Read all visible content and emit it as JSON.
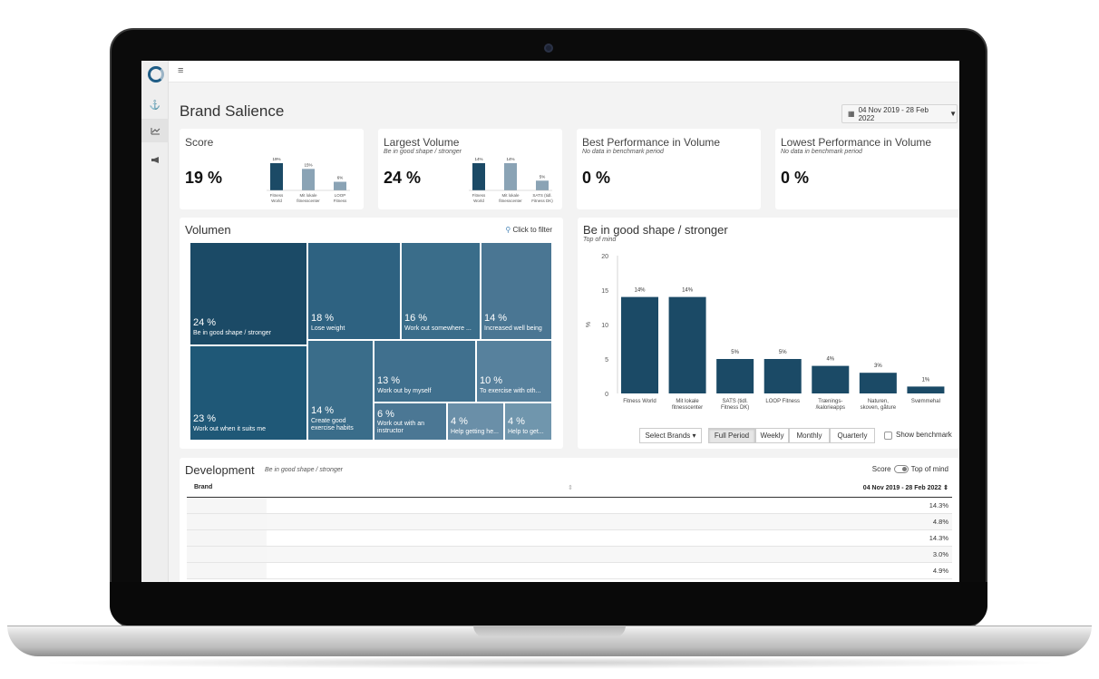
{
  "header": {
    "page_title": "Brand Salience",
    "date_range": "04 Nov 2019 - 28 Feb 2022"
  },
  "sidebar": {
    "items": [
      "anchor-icon",
      "line-chart-icon",
      "megaphone-icon"
    ]
  },
  "kpis": [
    {
      "title": "Score",
      "subtitle": "",
      "value": "19 %",
      "mini": {
        "values": [
          19,
          15,
          6
        ],
        "labels": [
          "19%",
          "15%",
          "6%"
        ],
        "categories": [
          "Fitness World",
          "Mit lokale fitnesscenter",
          "LOOP Fitness"
        ]
      }
    },
    {
      "title": "Largest Volume",
      "subtitle": "Be in good shape / stronger",
      "value": "24 %",
      "mini": {
        "values": [
          14,
          14,
          5
        ],
        "labels": [
          "14%",
          "14%",
          "5%"
        ],
        "categories": [
          "Fitness World",
          "Mit lokale fitnesscenter",
          "SATS (tidl. Fitness DK)"
        ]
      }
    },
    {
      "title": "Best Performance in Volume",
      "subtitle": "No data in benchmark period",
      "value": "0 %"
    },
    {
      "title": "Lowest Performance in Volume",
      "subtitle": "No data in benchmark period",
      "value": "0 %"
    }
  ],
  "volumen": {
    "title": "Volumen",
    "filter_label": "Click to filter",
    "cells": [
      {
        "pct": "24 %",
        "label": "Be in good shape / stronger",
        "color": "#1b4a66"
      },
      {
        "pct": "23 %",
        "label": "Work out when it suits me",
        "color": "#1f5877"
      },
      {
        "pct": "18 %",
        "label": "Lose weight",
        "color": "#2e6281"
      },
      {
        "pct": "16 %",
        "label": "Work out somewhere ...",
        "color": "#3a6d8a"
      },
      {
        "pct": "14 %",
        "label": "Increased well being",
        "color": "#4a7693"
      },
      {
        "pct": "14 %",
        "label": "Create good exercise habits",
        "color": "#3a6d8a"
      },
      {
        "pct": "13 %",
        "label": "Work out by myself",
        "color": "#40708e"
      },
      {
        "pct": "10 %",
        "label": "To exercise with oth...",
        "color": "#57819d"
      },
      {
        "pct": "6 %",
        "label": "Work out with an instructor",
        "color": "#4b7794"
      },
      {
        "pct": "4 %",
        "label": "Help getting he...",
        "color": "#6a8fa8"
      },
      {
        "pct": "4 %",
        "label": "Help to get...",
        "color": "#7096ad"
      }
    ]
  },
  "bar_panel": {
    "title": "Be in good shape / stronger",
    "subtitle": "Top of mind",
    "select_brands": "Select Brands ▾",
    "period_buttons": [
      "Full Period",
      "Weekly",
      "Monthly",
      "Quarterly"
    ],
    "benchmark_label": "Show benchmark"
  },
  "chart_data": {
    "type": "bar",
    "title": "Be in good shape / stronger",
    "subtitle": "Top of mind",
    "ylabel": "%",
    "ylim": [
      0,
      20
    ],
    "yticks": [
      0,
      5,
      10,
      15,
      20
    ],
    "categories": [
      "Fitness World",
      "Mit lokale fitnesscenter",
      "SATS (tidl. Fitness DK)",
      "LOOP Fitness",
      "Trænings-/kalorieapps",
      "Naturen, skoven, gåture",
      "Svømmehal"
    ],
    "values": [
      14,
      14,
      5,
      5,
      4,
      3,
      1
    ],
    "data_labels": [
      "14%",
      "14%",
      "5%",
      "5%",
      "4%",
      "3%",
      "1%"
    ],
    "color": "#1b4a66",
    "grid": false
  },
  "development": {
    "title": "Development",
    "subtitle": "Be in good shape / stronger",
    "toggle_left": "Score",
    "toggle_right": "Top of mind",
    "col_brand": "Brand",
    "col_sort": "⇕",
    "col_date": "04 Nov 2019 - 28 Feb 2022 ⇕",
    "rows": [
      "14.3%",
      "4.8%",
      "14.3%",
      "3.0%",
      "4.9%"
    ]
  }
}
